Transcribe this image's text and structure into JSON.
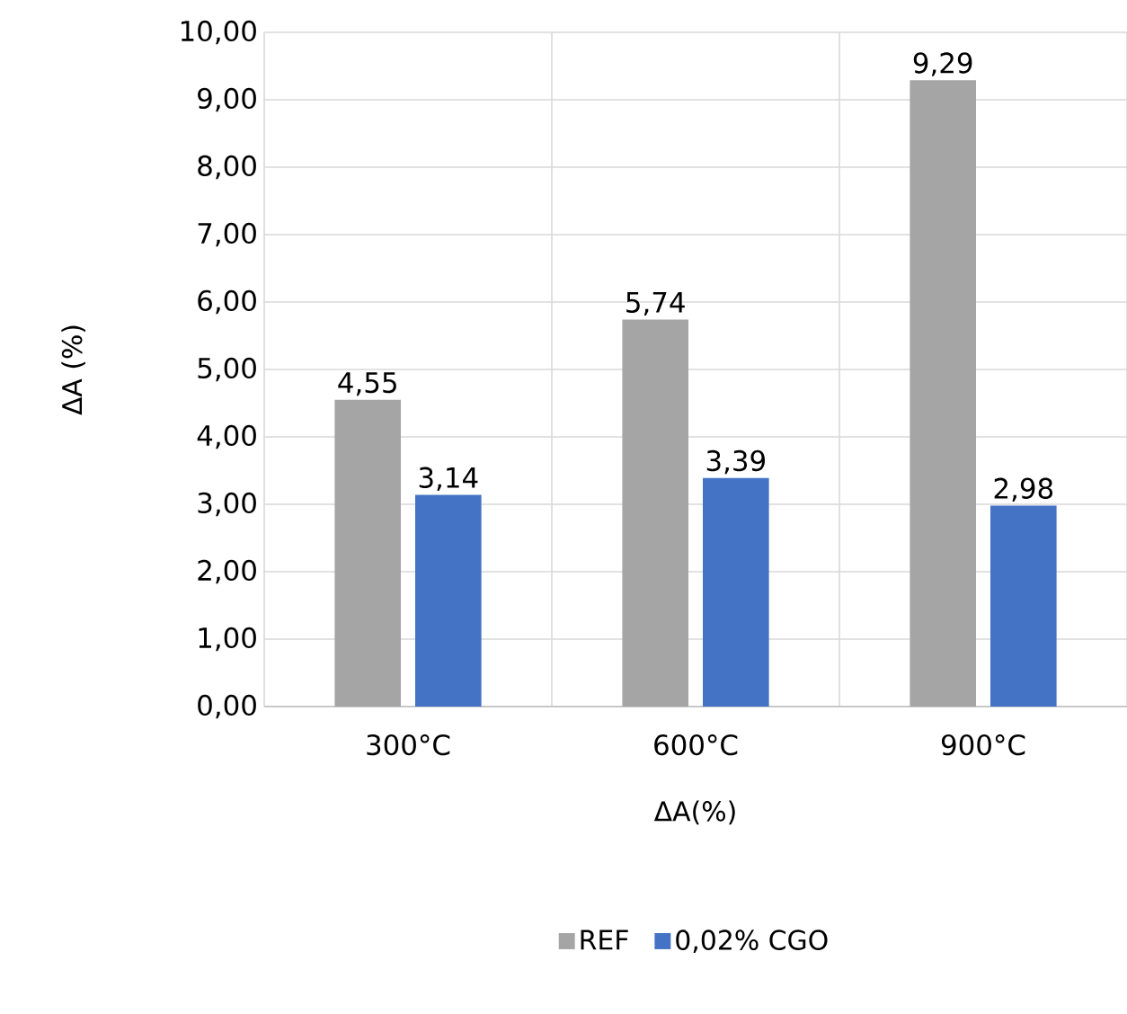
{
  "chart_data": {
    "type": "bar",
    "xlabel": "ΔA(%)",
    "ylabel": "ΔA (%)",
    "categories": [
      "300°C",
      "600°C",
      "900°C"
    ],
    "series": [
      {
        "name": "REF",
        "color": "#a5a5a5",
        "values": [
          4.55,
          5.74,
          9.29
        ],
        "value_labels": [
          "4,55",
          "5,74",
          "9,29"
        ]
      },
      {
        "name": "0,02% CGO",
        "color": "#4472c4",
        "values": [
          3.14,
          3.39,
          2.98
        ],
        "value_labels": [
          "3,14",
          "3,39",
          "2,98"
        ]
      }
    ],
    "ylim": [
      0,
      10
    ],
    "yticks": [
      {
        "value": 0,
        "label": "0,00"
      },
      {
        "value": 1,
        "label": "1,00"
      },
      {
        "value": 2,
        "label": "2,00"
      },
      {
        "value": 3,
        "label": "3,00"
      },
      {
        "value": 4,
        "label": "4,00"
      },
      {
        "value": 5,
        "label": "5,00"
      },
      {
        "value": 6,
        "label": "6,00"
      },
      {
        "value": 7,
        "label": "7,00"
      },
      {
        "value": 8,
        "label": "8,00"
      },
      {
        "value": 9,
        "label": "9,00"
      },
      {
        "value": 10,
        "label": "10,00"
      }
    ],
    "grid": true,
    "legend": "bottom"
  }
}
